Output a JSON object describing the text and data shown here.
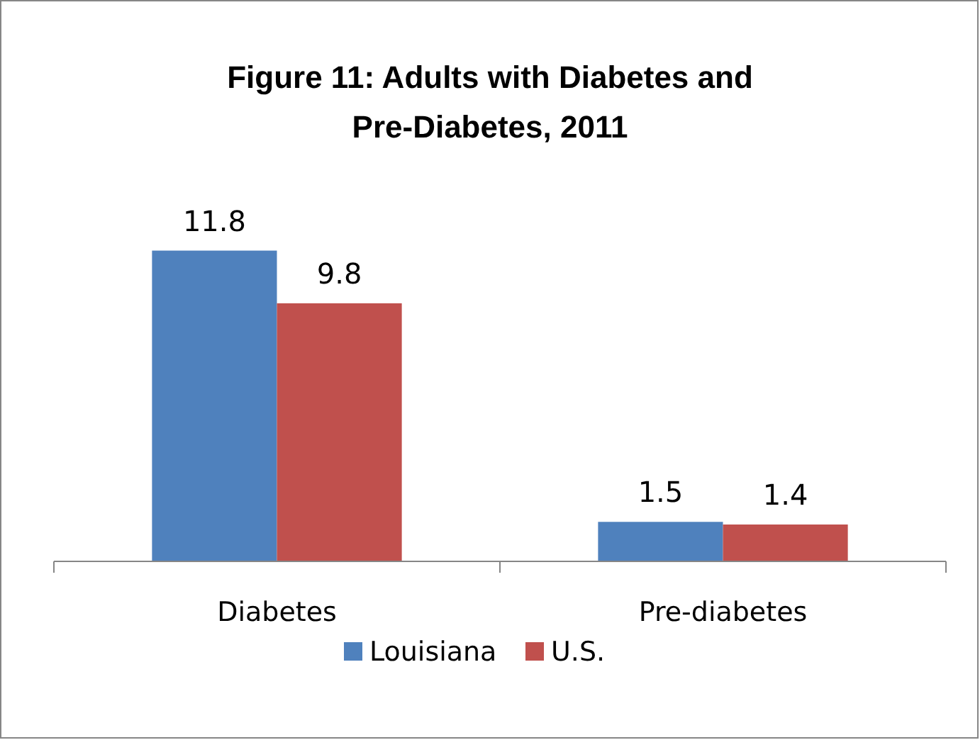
{
  "chart_data": {
    "type": "bar",
    "title": "Figure 11: Adults with Diabetes and Pre-Diabetes, 2011",
    "categories": [
      "Diabetes",
      "Pre-diabetes"
    ],
    "series": [
      {
        "name": "Louisiana",
        "color": "#4f81bd",
        "values": [
          11.8,
          1.5
        ]
      },
      {
        "name": "U.S.",
        "color": "#c0504d",
        "values": [
          9.8,
          1.4
        ]
      }
    ],
    "data_labels": true,
    "legend": "bottom"
  }
}
